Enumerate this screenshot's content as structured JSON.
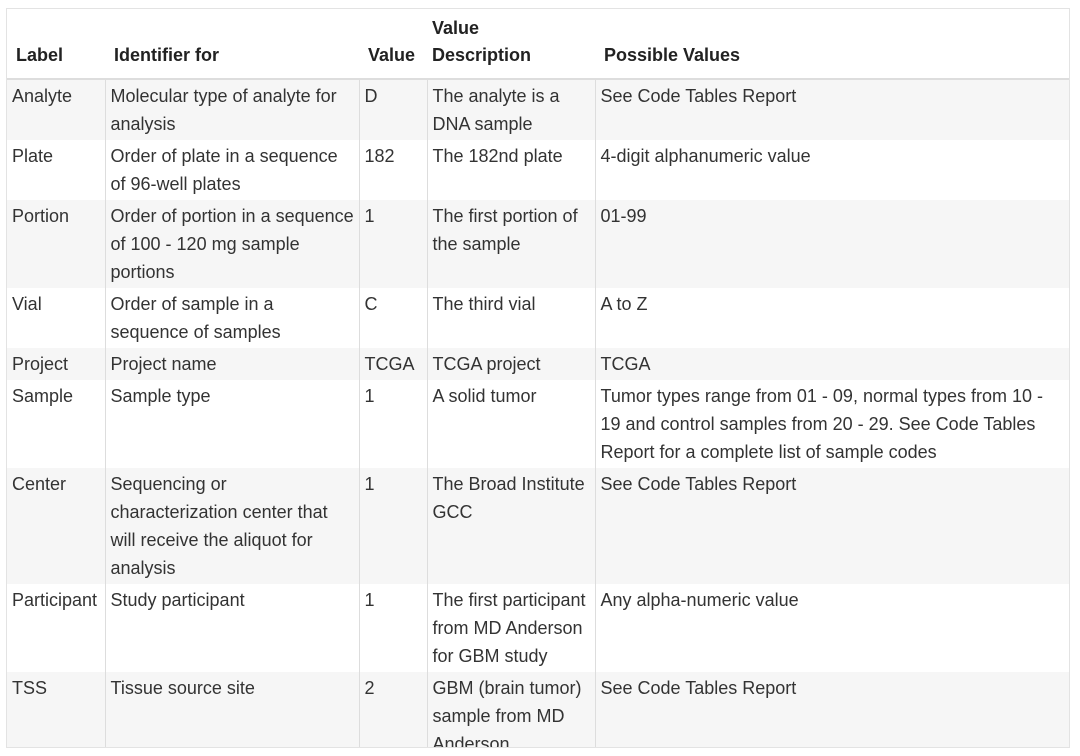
{
  "headers": {
    "label": "Label",
    "identifier_for": "Identifier for",
    "value": "Value",
    "value_description_line1": "Value",
    "value_description_line2": "Description",
    "possible_values": "Possible Values"
  },
  "rows": [
    {
      "label": "Analyte",
      "identifier_for": "Molecular type of analyte for analysis",
      "value": "D",
      "value_description": "The analyte is a DNA sample",
      "possible_values": "See Code Tables Report"
    },
    {
      "label": "Plate",
      "identifier_for": "Order of plate in a sequence of 96-well plates",
      "value": "182",
      "value_description": "The 182nd plate",
      "possible_values": "4-digit alphanumeric value"
    },
    {
      "label": "Portion",
      "identifier_for": "Order of portion in a sequence of 100 - 120 mg sample portions",
      "value": "1",
      "value_description": "The first portion of the sample",
      "possible_values": "01-99"
    },
    {
      "label": "Vial",
      "identifier_for": "Order of sample in a sequence of samples",
      "value": "C",
      "value_description": "The third vial",
      "possible_values": "A to Z"
    },
    {
      "label": "Project",
      "identifier_for": "Project name",
      "value": "TCGA",
      "value_description": "TCGA project",
      "possible_values": "TCGA"
    },
    {
      "label": "Sample",
      "identifier_for": "Sample type",
      "value": "1",
      "value_description": "A solid tumor",
      "possible_values": "Tumor types range from 01 - 09, normal types from 10 - 19 and control samples from 20 - 29. See Code Tables Report for a complete list of sample codes"
    },
    {
      "label": "Center",
      "identifier_for": "Sequencing or characterization center that will receive the aliquot for analysis",
      "value": "1",
      "value_description": "The Broad Institute GCC",
      "possible_values": "See Code Tables Report"
    },
    {
      "label": "Participant",
      "identifier_for": "Study participant",
      "value": "1",
      "value_description": "The first participant from MD Anderson for GBM study",
      "possible_values": "Any alpha-numeric value"
    },
    {
      "label": "TSS",
      "identifier_for": "Tissue source site",
      "value": "2",
      "value_description": "GBM (brain tumor) sample from MD Anderson",
      "possible_values": "See Code Tables Report"
    }
  ]
}
